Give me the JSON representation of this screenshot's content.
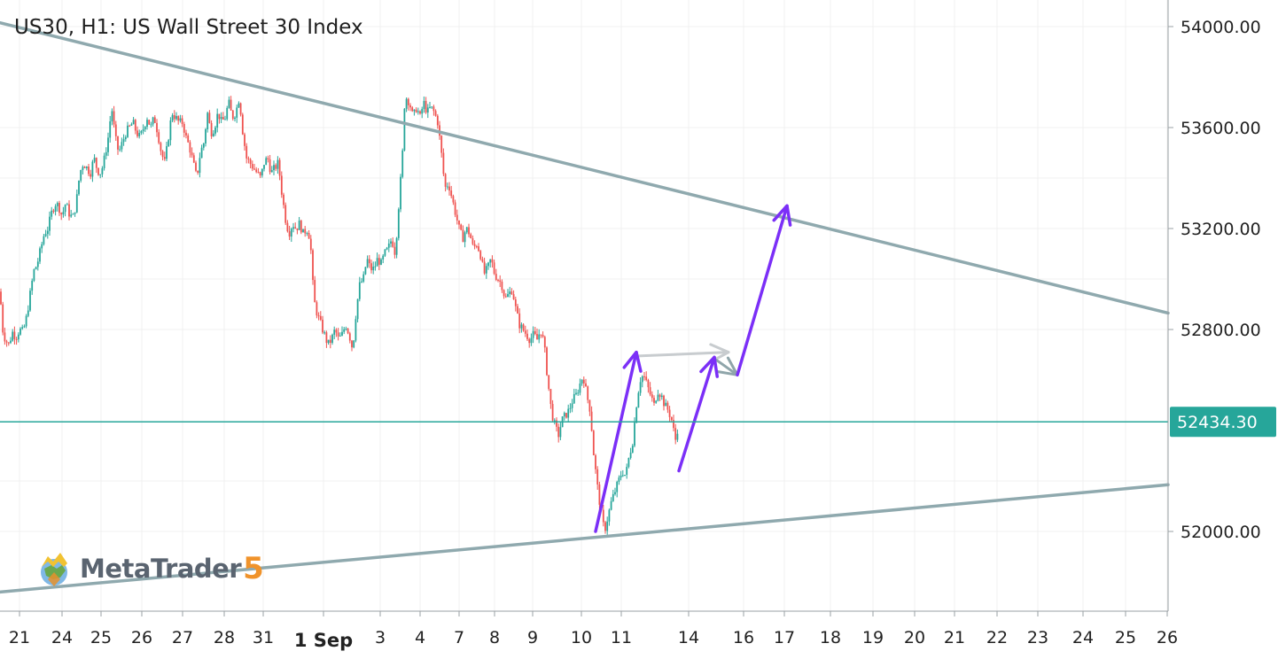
{
  "chart_data": {
    "type": "candlestick",
    "title": "US30, H1: US Wall Street 30 Index",
    "symbol": "US30",
    "timeframe": "H1",
    "instrument_name": "US Wall Street 30 Index",
    "y_axis": {
      "ticks": [
        54000,
        53600,
        53200,
        52800,
        52000
      ],
      "tick_labels": [
        "54000.00",
        "53600.00",
        "53200.00",
        "52800.00",
        "52000.00"
      ],
      "range": [
        51720,
        54150
      ]
    },
    "x_axis": {
      "ticks": [
        "21",
        "24",
        "25",
        "26",
        "27",
        "28",
        "31",
        "1 Sep",
        "3",
        "4",
        "7",
        "8",
        "9",
        "10",
        "11",
        "14",
        "16",
        "17",
        "18",
        "19",
        "20",
        "21",
        "22",
        "23",
        "24",
        "25",
        "26"
      ]
    },
    "current_price": 52434.3,
    "current_price_label": "52434.30",
    "price_path": [
      [
        0,
        52950
      ],
      [
        3,
        52800
      ],
      [
        6,
        52760
      ],
      [
        10,
        52740
      ],
      [
        14,
        52790
      ],
      [
        18,
        52770
      ],
      [
        22,
        52800
      ],
      [
        26,
        52790
      ],
      [
        30,
        52850
      ],
      [
        34,
        52940
      ],
      [
        38,
        53030
      ],
      [
        42,
        53060
      ],
      [
        46,
        53120
      ],
      [
        50,
        53180
      ],
      [
        54,
        53200
      ],
      [
        58,
        53260
      ],
      [
        62,
        53300
      ],
      [
        66,
        53290
      ],
      [
        70,
        53250
      ],
      [
        74,
        53300
      ],
      [
        78,
        53260
      ],
      [
        82,
        53240
      ],
      [
        86,
        53300
      ],
      [
        90,
        53420
      ],
      [
        94,
        53460
      ],
      [
        98,
        53440
      ],
      [
        102,
        53420
      ],
      [
        106,
        53480
      ],
      [
        110,
        53430
      ],
      [
        114,
        53420
      ],
      [
        118,
        53480
      ],
      [
        122,
        53560
      ],
      [
        126,
        53680
      ],
      [
        130,
        53560
      ],
      [
        134,
        53500
      ],
      [
        138,
        53540
      ],
      [
        142,
        53580
      ],
      [
        146,
        53600
      ],
      [
        150,
        53620
      ],
      [
        154,
        53580
      ],
      [
        158,
        53560
      ],
      [
        162,
        53600
      ],
      [
        166,
        53640
      ],
      [
        170,
        53600
      ],
      [
        174,
        53640
      ],
      [
        178,
        53580
      ],
      [
        182,
        53500
      ],
      [
        186,
        53460
      ],
      [
        190,
        53560
      ],
      [
        194,
        53660
      ],
      [
        198,
        53640
      ],
      [
        202,
        53620
      ],
      [
        206,
        53620
      ],
      [
        210,
        53560
      ],
      [
        214,
        53520
      ],
      [
        218,
        53460
      ],
      [
        222,
        53400
      ],
      [
        226,
        53500
      ],
      [
        230,
        53540
      ],
      [
        234,
        53660
      ],
      [
        238,
        53580
      ],
      [
        242,
        53600
      ],
      [
        246,
        53660
      ],
      [
        250,
        53620
      ],
      [
        254,
        53640
      ],
      [
        258,
        53700
      ],
      [
        262,
        53640
      ],
      [
        266,
        53660
      ],
      [
        270,
        53720
      ],
      [
        274,
        53580
      ],
      [
        278,
        53480
      ],
      [
        282,
        53460
      ],
      [
        286,
        53440
      ],
      [
        290,
        53420
      ],
      [
        294,
        53400
      ],
      [
        298,
        53460
      ],
      [
        302,
        53480
      ],
      [
        306,
        53420
      ],
      [
        310,
        53440
      ],
      [
        314,
        53460
      ],
      [
        318,
        53340
      ],
      [
        322,
        53240
      ],
      [
        326,
        53180
      ],
      [
        330,
        53220
      ],
      [
        334,
        53200
      ],
      [
        338,
        53220
      ],
      [
        342,
        53180
      ],
      [
        346,
        53200
      ],
      [
        350,
        53160
      ],
      [
        354,
        52920
      ],
      [
        358,
        52860
      ],
      [
        362,
        52820
      ],
      [
        366,
        52780
      ],
      [
        370,
        52740
      ],
      [
        374,
        52760
      ],
      [
        378,
        52800
      ],
      [
        382,
        52760
      ],
      [
        386,
        52780
      ],
      [
        390,
        52820
      ],
      [
        394,
        52780
      ],
      [
        398,
        52720
      ],
      [
        402,
        52880
      ],
      [
        406,
        52980
      ],
      [
        410,
        53000
      ],
      [
        414,
        53080
      ],
      [
        418,
        53040
      ],
      [
        422,
        53040
      ],
      [
        426,
        53080
      ],
      [
        430,
        53060
      ],
      [
        434,
        53100
      ],
      [
        438,
        53120
      ],
      [
        442,
        53160
      ],
      [
        446,
        53100
      ],
      [
        450,
        53300
      ],
      [
        454,
        53480
      ],
      [
        456,
        53680
      ],
      [
        458,
        53720
      ],
      [
        462,
        53700
      ],
      [
        466,
        53640
      ],
      [
        470,
        53680
      ],
      [
        474,
        53640
      ],
      [
        478,
        53700
      ],
      [
        482,
        53660
      ],
      [
        486,
        53680
      ],
      [
        490,
        53660
      ],
      [
        494,
        53620
      ],
      [
        498,
        53500
      ],
      [
        502,
        53360
      ],
      [
        506,
        53380
      ],
      [
        510,
        53320
      ],
      [
        514,
        53260
      ],
      [
        518,
        53200
      ],
      [
        522,
        53160
      ],
      [
        526,
        53200
      ],
      [
        530,
        53180
      ],
      [
        534,
        53120
      ],
      [
        538,
        53140
      ],
      [
        542,
        53100
      ],
      [
        546,
        53020
      ],
      [
        550,
        53040
      ],
      [
        554,
        53080
      ],
      [
        558,
        53020
      ],
      [
        562,
        53000
      ],
      [
        566,
        52980
      ],
      [
        570,
        52920
      ],
      [
        574,
        52940
      ],
      [
        578,
        52960
      ],
      [
        582,
        52880
      ],
      [
        586,
        52820
      ],
      [
        590,
        52800
      ],
      [
        594,
        52780
      ],
      [
        598,
        52760
      ],
      [
        602,
        52780
      ],
      [
        606,
        52760
      ],
      [
        610,
        52800
      ],
      [
        614,
        52740
      ],
      [
        618,
        52600
      ],
      [
        622,
        52480
      ],
      [
        626,
        52420
      ],
      [
        630,
        52380
      ],
      [
        634,
        52440
      ],
      [
        638,
        52460
      ],
      [
        642,
        52480
      ],
      [
        646,
        52520
      ],
      [
        650,
        52540
      ],
      [
        654,
        52580
      ],
      [
        658,
        52620
      ],
      [
        662,
        52540
      ],
      [
        666,
        52480
      ],
      [
        670,
        52300
      ],
      [
        674,
        52180
      ],
      [
        678,
        52080
      ],
      [
        682,
        52000
      ],
      [
        686,
        52060
      ],
      [
        690,
        52120
      ],
      [
        694,
        52160
      ],
      [
        698,
        52200
      ],
      [
        702,
        52240
      ],
      [
        706,
        52220
      ],
      [
        710,
        52300
      ],
      [
        714,
        52360
      ],
      [
        718,
        52500
      ],
      [
        722,
        52600
      ],
      [
        726,
        52620
      ],
      [
        730,
        52580
      ],
      [
        734,
        52540
      ],
      [
        738,
        52500
      ],
      [
        742,
        52560
      ],
      [
        746,
        52540
      ],
      [
        750,
        52500
      ],
      [
        754,
        52480
      ],
      [
        758,
        52440
      ],
      [
        762,
        52360
      ],
      [
        766,
        52434
      ]
    ],
    "trendlines": [
      {
        "name": "descending resistance",
        "from": [
          0,
          54015
        ],
        "to": [
          1318,
          52865
        ]
      },
      {
        "name": "ascending support",
        "from": [
          0,
          51760
        ],
        "to": [
          1318,
          52185
        ]
      }
    ],
    "projection_arrows": [
      {
        "color": "#7b2ff7",
        "from": [
          672,
          52000
        ],
        "to": [
          718,
          52710
        ]
      },
      {
        "color": "#7b2ff7",
        "from": [
          766,
          52240
        ],
        "to": [
          806,
          52690
        ]
      },
      {
        "color": "#7b2ff7",
        "from": [
          832,
          52620
        ],
        "to": [
          888,
          53290
        ]
      }
    ],
    "ghost_arrow": {
      "color": "#c8cccf",
      "from": [
        720,
        52695
      ],
      "to": [
        822,
        52710
      ]
    },
    "ghost_return": {
      "color": "#8fa5aa",
      "from": [
        808,
        52680
      ],
      "to": [
        832,
        52620
      ]
    }
  },
  "branding": {
    "logo_text": "MetaTrader",
    "logo_number": "5"
  },
  "colors": {
    "bull": "#26a69a",
    "bear": "#ef5350",
    "trendline": "#8fa9ae",
    "current_price_line": "#26a69a",
    "arrow": "#7b2ff7",
    "ghost": "#c8cccf",
    "grid": "#f1f1f1",
    "axis_text": "#222222"
  }
}
